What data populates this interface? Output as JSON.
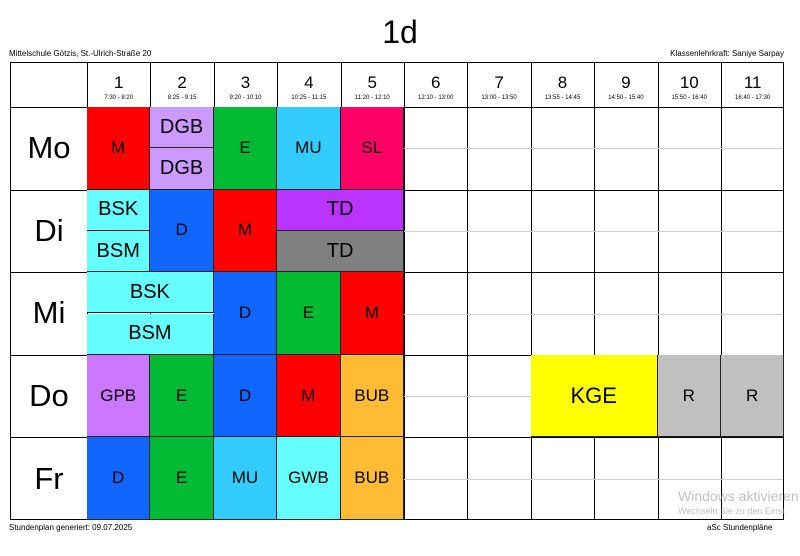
{
  "header": {
    "title": "1d",
    "school": "Mittelschule Götzis, St.-Ulrich-Straße 20",
    "teacher": "Klassenlehrkraft: Saniye Sarpay"
  },
  "periods": [
    {
      "num": "1",
      "time": "7:30 - 8:20"
    },
    {
      "num": "2",
      "time": "8:25 - 9:15"
    },
    {
      "num": "3",
      "time": "9:20 - 10:10"
    },
    {
      "num": "4",
      "time": "10:25 - 11:15"
    },
    {
      "num": "5",
      "time": "11:20 - 12:10"
    },
    {
      "num": "6",
      "time": "12:10 - 13:00"
    },
    {
      "num": "7",
      "time": "13:00 - 13:50"
    },
    {
      "num": "8",
      "time": "13:55 - 14:45"
    },
    {
      "num": "9",
      "time": "14:50 - 15:40"
    },
    {
      "num": "10",
      "time": "15:50 - 16:40"
    },
    {
      "num": "11",
      "time": "16:40 - 17:30"
    }
  ],
  "days": [
    "Mo",
    "Di",
    "Mi",
    "Do",
    "Fr"
  ],
  "lessons": [
    {
      "day": 0,
      "start": 1,
      "span": 1,
      "half": "full",
      "subject": "M",
      "color": "#ff0000"
    },
    {
      "day": 0,
      "start": 2,
      "span": 1,
      "half": "top",
      "subject": "DGB",
      "color": "#cc99ff"
    },
    {
      "day": 0,
      "start": 2,
      "span": 1,
      "half": "bottom",
      "subject": "DGB",
      "color": "#cc99ff"
    },
    {
      "day": 0,
      "start": 3,
      "span": 1,
      "half": "full",
      "subject": "E",
      "color": "#00bb33"
    },
    {
      "day": 0,
      "start": 4,
      "span": 1,
      "half": "full",
      "subject": "MU",
      "color": "#33ccff"
    },
    {
      "day": 0,
      "start": 5,
      "span": 1,
      "half": "full",
      "subject": "SL",
      "color": "#ff0066"
    },
    {
      "day": 1,
      "start": 1,
      "span": 1,
      "half": "top",
      "subject": "BSK",
      "color": "#66ffff"
    },
    {
      "day": 1,
      "start": 1,
      "span": 1,
      "half": "bottom",
      "subject": "BSM",
      "color": "#66ffff"
    },
    {
      "day": 1,
      "start": 2,
      "span": 1,
      "half": "full",
      "subject": "D",
      "color": "#1166ff"
    },
    {
      "day": 1,
      "start": 3,
      "span": 1,
      "half": "full",
      "subject": "M",
      "color": "#ff0000"
    },
    {
      "day": 1,
      "start": 4,
      "span": 2,
      "half": "top",
      "subject": "TD",
      "color": "#bb33ff"
    },
    {
      "day": 1,
      "start": 4,
      "span": 2,
      "half": "bottom",
      "subject": "TD",
      "color": "#808080"
    },
    {
      "day": 2,
      "start": 1,
      "span": 2,
      "half": "top",
      "subject": "BSK",
      "color": "#66ffff"
    },
    {
      "day": 2,
      "start": 1,
      "span": 2,
      "half": "bottom",
      "subject": "BSM",
      "color": "#66ffff"
    },
    {
      "day": 2,
      "start": 3,
      "span": 1,
      "half": "full",
      "subject": "D",
      "color": "#1166ff"
    },
    {
      "day": 2,
      "start": 4,
      "span": 1,
      "half": "full",
      "subject": "E",
      "color": "#00bb33"
    },
    {
      "day": 2,
      "start": 5,
      "span": 1,
      "half": "full",
      "subject": "M",
      "color": "#ff0000"
    },
    {
      "day": 3,
      "start": 1,
      "span": 1,
      "half": "full",
      "subject": "GPB",
      "color": "#cc77ff"
    },
    {
      "day": 3,
      "start": 2,
      "span": 1,
      "half": "full",
      "subject": "E",
      "color": "#00bb33"
    },
    {
      "day": 3,
      "start": 3,
      "span": 1,
      "half": "full",
      "subject": "D",
      "color": "#1166ff"
    },
    {
      "day": 3,
      "start": 4,
      "span": 1,
      "half": "full",
      "subject": "M",
      "color": "#ff0000"
    },
    {
      "day": 3,
      "start": 5,
      "span": 1,
      "half": "full",
      "subject": "BUB",
      "color": "#ffbb33"
    },
    {
      "day": 3,
      "start": 8,
      "span": 2,
      "half": "full",
      "subject": "KGE",
      "color": "#ffff00"
    },
    {
      "day": 3,
      "start": 10,
      "span": 1,
      "half": "full",
      "subject": "R",
      "color": "#c0c0c0"
    },
    {
      "day": 3,
      "start": 11,
      "span": 1,
      "half": "full",
      "subject": "R",
      "color": "#c0c0c0"
    },
    {
      "day": 4,
      "start": 1,
      "span": 1,
      "half": "full",
      "subject": "D",
      "color": "#1166ff"
    },
    {
      "day": 4,
      "start": 2,
      "span": 1,
      "half": "full",
      "subject": "E",
      "color": "#00bb33"
    },
    {
      "day": 4,
      "start": 3,
      "span": 1,
      "half": "full",
      "subject": "MU",
      "color": "#33ccff"
    },
    {
      "day": 4,
      "start": 4,
      "span": 1,
      "half": "full",
      "subject": "GWB",
      "color": "#66ffff"
    },
    {
      "day": 4,
      "start": 5,
      "span": 1,
      "half": "full",
      "subject": "BUB",
      "color": "#ffbb33"
    }
  ],
  "footer": {
    "generated": "Stundenplan generiert: 09.07.2025",
    "brand": "aSc Stundenpläne"
  },
  "watermark": {
    "line1": "Windows aktivieren",
    "line2": "Wechseln Sie zu den Einst"
  }
}
